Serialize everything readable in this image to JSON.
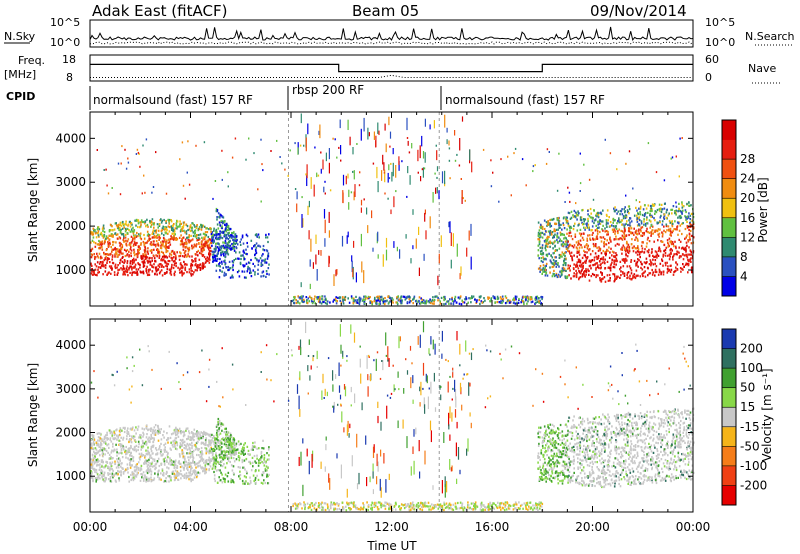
{
  "header": {
    "station": "Adak East (fitACF)",
    "beam": "Beam 05",
    "date": "09/Nov/2014"
  },
  "chart_data": [
    {
      "type": "line",
      "panel": "noise",
      "left_label": "N.Sky",
      "left_ticks": [
        "10^5",
        "10^0"
      ],
      "right_label": "N.Search",
      "right_ticks": [
        "10^5",
        "10^0"
      ],
      "scale": "log"
    },
    {
      "type": "line",
      "panel": "frequency",
      "left_label_line1": "Freq.",
      "left_label_line2": "[MHz]",
      "left_ticks": [
        18,
        8
      ],
      "right_label": "Nave",
      "right_ticks": [
        60,
        0
      ],
      "series": [
        {
          "name": "Freq.",
          "x": [
            0,
            9.9,
            9.9,
            18.0,
            18.0,
            24
          ],
          "values": [
            16.3,
            16.3,
            12.7,
            12.7,
            16.3,
            16.3
          ]
        },
        {
          "name": "Nave",
          "x": [
            0,
            11.5,
            12,
            12.5,
            24
          ],
          "values": [
            4,
            4,
            10,
            4,
            4
          ]
        }
      ]
    },
    {
      "type": "table",
      "panel": "cpid",
      "label": "CPID",
      "segments": [
        {
          "name": "normalsound (fast) 157 RF",
          "start": 0,
          "end": 7.9
        },
        {
          "name": "rbsp 200 RF",
          "start": 7.9,
          "end": 13.9
        },
        {
          "name": "normalsound (fast) 157 RF",
          "start": 13.9,
          "end": 24
        }
      ]
    },
    {
      "type": "heatmap",
      "panel": "power",
      "ylabel": "Slant Range [km]",
      "yticks": [
        1000,
        2000,
        3000,
        4000
      ],
      "ylim": [
        180,
        4600
      ],
      "xlim": [
        0,
        24
      ],
      "colorbar_label": "Power [dB]",
      "colorbar_ticks": [
        "4",
        "8",
        "12",
        "16",
        "20",
        "24",
        "28"
      ],
      "colorbar_colors": [
        "#0000e6",
        "#2a50c0",
        "#2f8a70",
        "#60c040",
        "#f0c010",
        "#f08c10",
        "#f05010",
        "#e61e10",
        "#d80000"
      ]
    },
    {
      "type": "heatmap",
      "panel": "velocity",
      "ylabel": "Slant Range [km]",
      "yticks": [
        1000,
        2000,
        3000,
        4000
      ],
      "ylim": [
        180,
        4600
      ],
      "xlim": [
        0,
        24
      ],
      "xticks": [
        "00:00",
        "04:00",
        "08:00",
        "12:00",
        "16:00",
        "20:00",
        "00:00"
      ],
      "xlabel": "Time UT",
      "colorbar_label": "Velocity [m s⁻¹]",
      "colorbar_ticks": [
        "200",
        "100",
        "50",
        "15",
        "-15",
        "-50",
        "-100",
        "-200"
      ],
      "colorbar_colors": [
        "#1a3ab0",
        "#2f7060",
        "#40a030",
        "#88d848",
        "#c8c8c8",
        "#f5b419",
        "#f57d19",
        "#f04014",
        "#e60000"
      ]
    }
  ]
}
